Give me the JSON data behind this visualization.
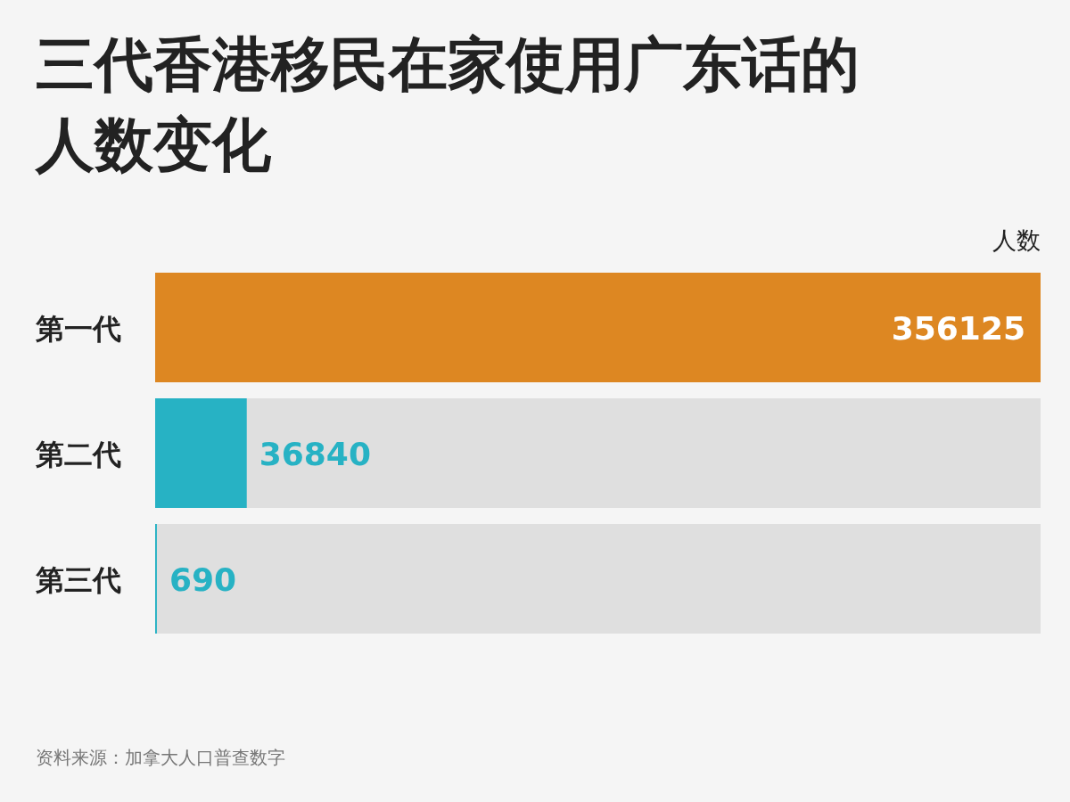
{
  "chart_data": {
    "type": "bar",
    "orientation": "horizontal",
    "title": "三代香港移民在家使用广东话的人数变化",
    "xlabel": "人数",
    "categories": [
      "第一代",
      "第二代",
      "第三代"
    ],
    "values": [
      356125,
      36840,
      690
    ],
    "colors": [
      "#dd8722",
      "#27b2c4",
      "#27b2c4"
    ],
    "data_labels": true,
    "annotations": [
      "资料来源：加拿大人口普查数字"
    ]
  }
}
